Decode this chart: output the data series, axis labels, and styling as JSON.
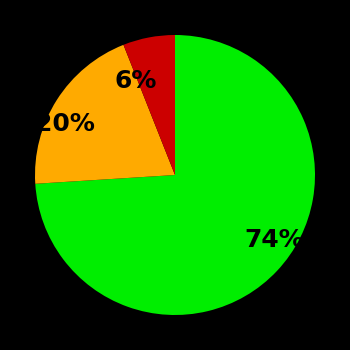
{
  "slices": [
    74,
    20,
    6
  ],
  "colors": [
    "#00ee00",
    "#ffaa00",
    "#cc0000"
  ],
  "labels": [
    "74%",
    "20%",
    "6%"
  ],
  "background_color": "#000000",
  "startangle": 90,
  "counterclock": false,
  "figsize": [
    3.5,
    3.5
  ],
  "dpi": 100,
  "label_fontsize": 18,
  "label_fontweight": "bold",
  "labeldistance": 0.68
}
